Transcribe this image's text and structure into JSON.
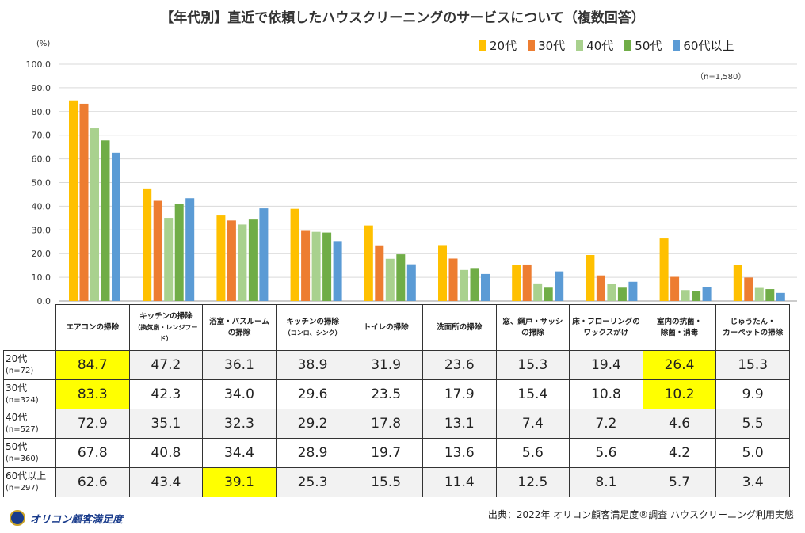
{
  "title": "【年代別】直近で依頼したハウスクリーニングのサービスについて（複数回答）",
  "unit_label": "(%)",
  "sample_total": "（n=1,580）",
  "source": "出典：2022年 オリコン顧客満足度®調査 ハウスクリーニング利用実態",
  "logo_text": "オリコン顧客満足度",
  "chart_data": {
    "type": "bar",
    "ylim": [
      0,
      100
    ],
    "yticks": [
      "0.0",
      "10.0",
      "20.0",
      "30.0",
      "40.0",
      "50.0",
      "60.0",
      "70.0",
      "80.0",
      "90.0",
      "100.0"
    ],
    "grid": true,
    "legend_position": "top-right",
    "categories": [
      {
        "line1": "エアコンの掃除",
        "line2": ""
      },
      {
        "line1": "キッチンの掃除",
        "line2": "（換気扇・レンジフード）"
      },
      {
        "line1": "浴室・バスルーム",
        "line2": "の掃除"
      },
      {
        "line1": "キッチンの掃除",
        "line2": "（コンロ、シンク）"
      },
      {
        "line1": "トイレの掃除",
        "line2": ""
      },
      {
        "line1": "洗面所の掃除",
        "line2": ""
      },
      {
        "line1": "窓、網戸・サッシ",
        "line2": "の掃除"
      },
      {
        "line1": "床・フローリングの",
        "line2": "ワックスがけ"
      },
      {
        "line1": "室内の抗菌・",
        "line2": "除菌・消毒"
      },
      {
        "line1": "じゅうたん・",
        "line2": "カーペットの掃除"
      }
    ],
    "series": [
      {
        "name": "20代",
        "n": "(n=72)",
        "color": "#ffc000",
        "values": [
          "84.7",
          "47.2",
          "36.1",
          "38.9",
          "31.9",
          "23.6",
          "15.3",
          "19.4",
          "26.4",
          "15.3"
        ]
      },
      {
        "name": "30代",
        "n": "(n=324)",
        "color": "#ed7d31",
        "values": [
          "83.3",
          "42.3",
          "34.0",
          "29.6",
          "23.5",
          "17.9",
          "15.4",
          "10.8",
          "10.2",
          "9.9"
        ]
      },
      {
        "name": "40代",
        "n": "(n=527)",
        "color": "#a9d18e",
        "values": [
          "72.9",
          "35.1",
          "32.3",
          "29.2",
          "17.8",
          "13.1",
          "7.4",
          "7.2",
          "4.6",
          "5.5"
        ]
      },
      {
        "name": "50代",
        "n": "(n=360)",
        "color": "#70ad47",
        "values": [
          "67.8",
          "40.8",
          "34.4",
          "28.9",
          "19.7",
          "13.6",
          "5.6",
          "5.6",
          "4.2",
          "5.0"
        ]
      },
      {
        "name": "60代以上",
        "n": "(n=297)",
        "color": "#5b9bd5",
        "values": [
          "62.6",
          "43.4",
          "39.1",
          "25.3",
          "15.5",
          "11.4",
          "12.5",
          "8.1",
          "5.7",
          "3.4"
        ]
      }
    ],
    "highlighted_cells": [
      [
        0,
        0
      ],
      [
        0,
        8
      ],
      [
        1,
        0
      ],
      [
        1,
        8
      ],
      [
        4,
        2
      ]
    ],
    "highlight_color": "#ffff00"
  }
}
